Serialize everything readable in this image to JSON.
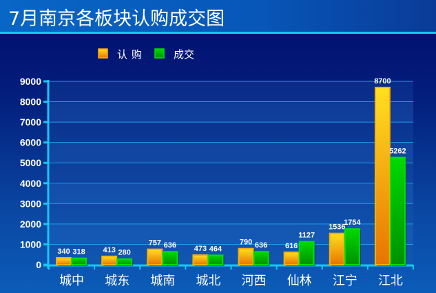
{
  "title": "7月南京各板块认购成交图",
  "chart_data": {
    "type": "bar",
    "title": "7月南京各板块认购成交图",
    "categories": [
      "城中",
      "城东",
      "城南",
      "城北",
      "河西",
      "仙林",
      "江宁",
      "江北"
    ],
    "series": [
      {
        "name": "认购",
        "values": [
          340,
          413,
          757,
          473,
          790,
          616,
          1536,
          8700
        ],
        "color": "#f5a300"
      },
      {
        "name": "成交",
        "values": [
          318,
          280,
          636,
          464,
          636,
          1127,
          1754,
          5262
        ],
        "color": "#00c000"
      }
    ],
    "ylim": [
      0,
      9000
    ],
    "yticks": [
      0,
      1000,
      2000,
      3000,
      4000,
      5000,
      6000,
      7000,
      8000,
      9000
    ],
    "grid": true,
    "legend": "top",
    "data_labels": true,
    "xlabel": "",
    "ylabel": ""
  }
}
